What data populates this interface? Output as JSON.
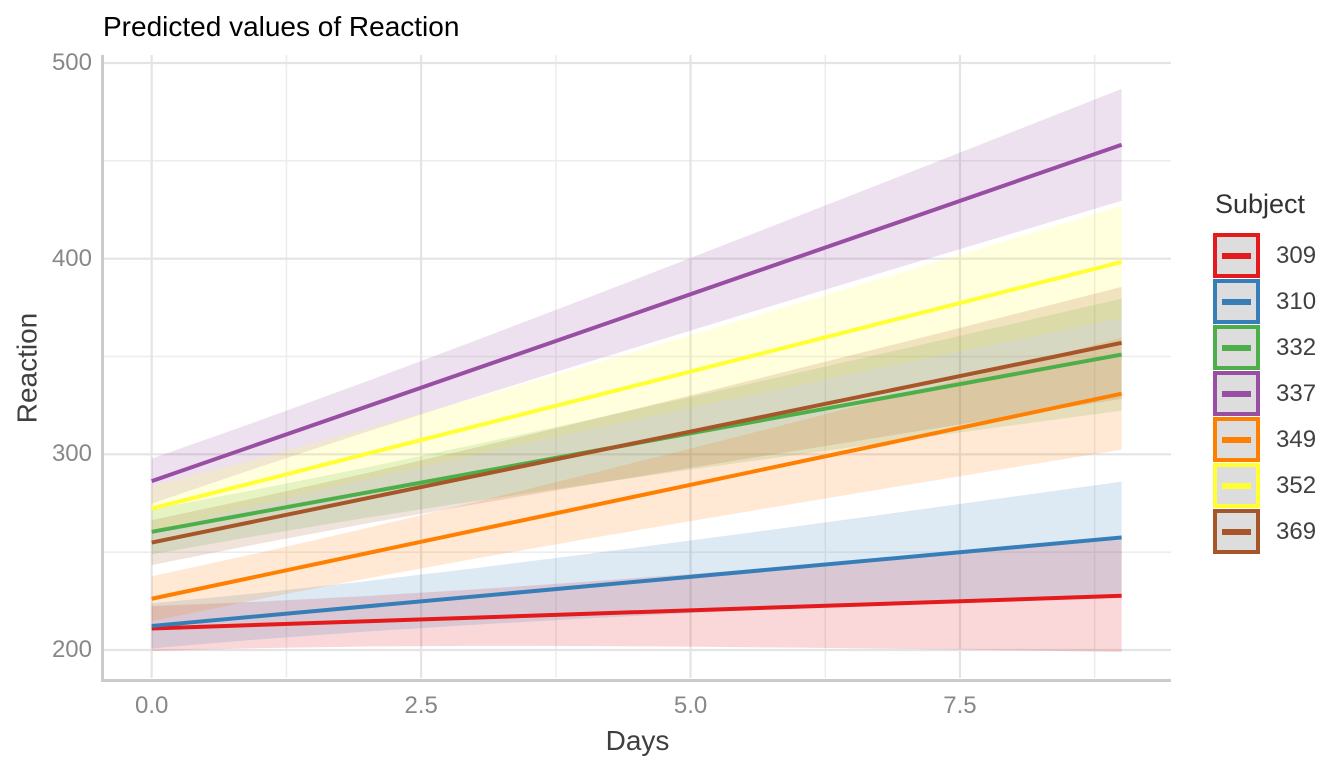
{
  "title": "Predicted values of Reaction",
  "chart_data": {
    "type": "line",
    "title": "Predicted values of Reaction",
    "xlabel": "Days",
    "ylabel": "Reaction",
    "legend_title": "Subject",
    "legend_position": "right",
    "grid": true,
    "background": "#ffffff",
    "grid_color_major": "#E4E4E4",
    "grid_color_minor": "#EDEDED",
    "axis_line_color": "#CBCBCB",
    "tick_label_color": "#888888",
    "axis_title_color": "#3f3f3f",
    "x_domain": [
      0,
      9
    ],
    "xlim": [
      -0.45,
      9.45
    ],
    "ylim": [
      185.7,
      504.1
    ],
    "x_ticks": {
      "values": [
        0,
        2.5,
        5,
        7.5
      ],
      "labels": [
        "0.0",
        "2.5",
        "5.0",
        "7.5"
      ]
    },
    "x_minor_ticks": [
      1.25,
      3.75,
      6.25,
      8.75
    ],
    "y_ticks": {
      "values": [
        200,
        300,
        400,
        500
      ],
      "labels": [
        "200",
        "300",
        "400",
        "500"
      ]
    },
    "y_minor_ticks": [
      250,
      350,
      450
    ],
    "ribbon": {
      "alpha": 0.17,
      "half_width_day0": 11.5,
      "half_width_day9": 28.6,
      "growth_coef": 2.91
    },
    "line_width": 4,
    "series": [
      {
        "name": "309",
        "color": "#E41A1C",
        "intercept": 211.0,
        "slope": 1.85,
        "y_day0": 211.0,
        "y_day9": 227.7
      },
      {
        "name": "310",
        "color": "#377EB8",
        "intercept": 212.3,
        "slope": 5.02,
        "y_day0": 212.3,
        "y_day9": 257.5
      },
      {
        "name": "332",
        "color": "#4DAF4A",
        "intercept": 260.4,
        "slope": 10.06,
        "y_day0": 260.4,
        "y_day9": 351.0
      },
      {
        "name": "337",
        "color": "#984EA3",
        "intercept": 286.3,
        "slope": 19.1,
        "y_day0": 286.3,
        "y_day9": 458.2
      },
      {
        "name": "349",
        "color": "#FF7F00",
        "intercept": 226.2,
        "slope": 11.64,
        "y_day0": 226.2,
        "y_day9": 331.0
      },
      {
        "name": "352",
        "color": "#FFFF33",
        "intercept": 272.3,
        "slope": 14.0,
        "y_day0": 272.3,
        "y_day9": 398.3
      },
      {
        "name": "369",
        "color": "#A65628",
        "intercept": 254.9,
        "slope": 11.34,
        "y_day0": 254.9,
        "y_day9": 357.0
      }
    ]
  }
}
